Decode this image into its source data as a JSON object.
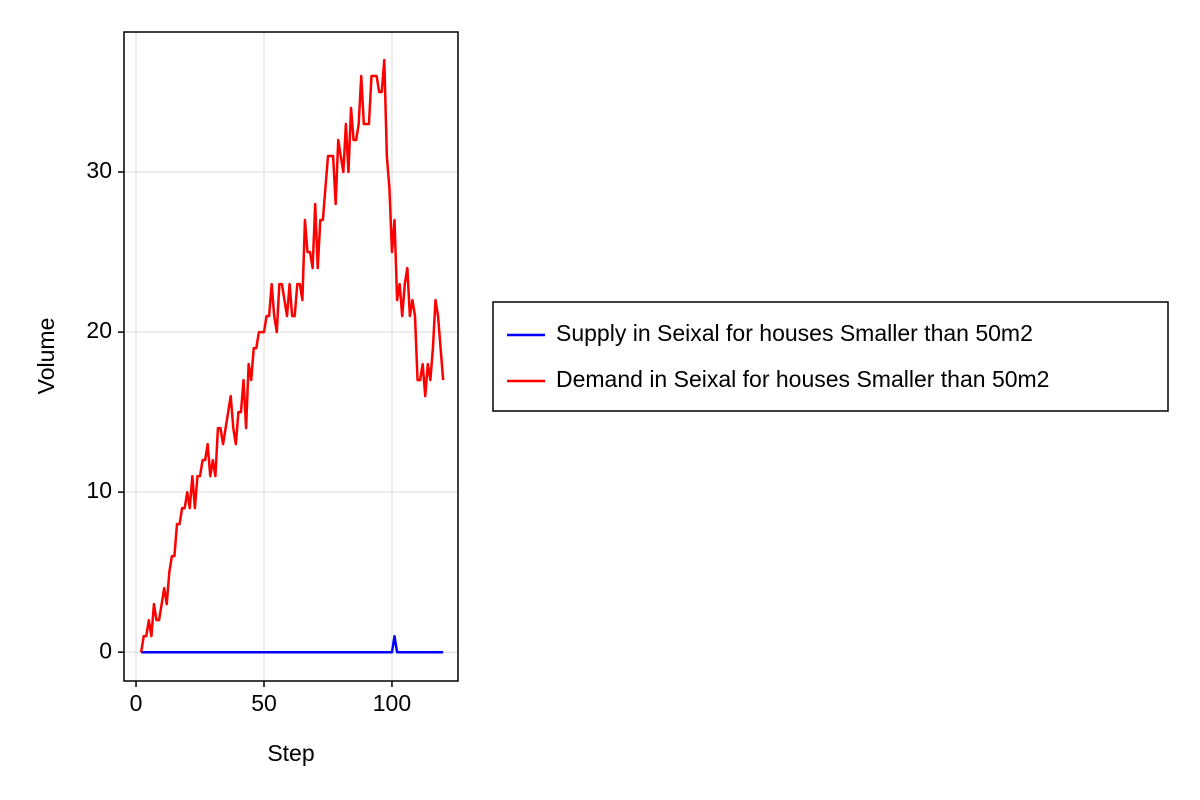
{
  "chart_data": {
    "type": "line",
    "xlabel": "Step",
    "ylabel": "Volume",
    "x": [
      2,
      3,
      4,
      5,
      6,
      7,
      8,
      9,
      10,
      11,
      12,
      13,
      14,
      15,
      16,
      17,
      18,
      19,
      20,
      21,
      22,
      23,
      24,
      25,
      26,
      27,
      28,
      29,
      30,
      31,
      32,
      33,
      34,
      35,
      36,
      37,
      38,
      39,
      40,
      41,
      42,
      43,
      44,
      45,
      46,
      47,
      48,
      49,
      50,
      51,
      52,
      53,
      54,
      55,
      56,
      57,
      58,
      59,
      60,
      61,
      62,
      63,
      64,
      65,
      66,
      67,
      68,
      69,
      70,
      71,
      72,
      73,
      74,
      75,
      76,
      77,
      78,
      79,
      80,
      81,
      82,
      83,
      84,
      85,
      86,
      87,
      88,
      89,
      90,
      91,
      92,
      93,
      94,
      95,
      96,
      97,
      98,
      99,
      100,
      101,
      102,
      103,
      104,
      105,
      106,
      107,
      108,
      109,
      110,
      111,
      112,
      113,
      114,
      115,
      116,
      117,
      118,
      119,
      120
    ],
    "series": [
      {
        "name": "Supply in Seixal for houses Smaller than 50m2",
        "color": "#0000ff",
        "values": [
          0,
          0,
          0,
          0,
          0,
          0,
          0,
          0,
          0,
          0,
          0,
          0,
          0,
          0,
          0,
          0,
          0,
          0,
          0,
          0,
          0,
          0,
          0,
          0,
          0,
          0,
          0,
          0,
          0,
          0,
          0,
          0,
          0,
          0,
          0,
          0,
          0,
          0,
          0,
          0,
          0,
          0,
          0,
          0,
          0,
          0,
          0,
          0,
          0,
          0,
          0,
          0,
          0,
          0,
          0,
          0,
          0,
          0,
          0,
          0,
          0,
          0,
          0,
          0,
          0,
          0,
          0,
          0,
          0,
          0,
          0,
          0,
          0,
          0,
          0,
          0,
          0,
          0,
          0,
          0,
          0,
          0,
          0,
          0,
          0,
          0,
          0,
          0,
          0,
          0,
          0,
          0,
          0,
          0,
          0,
          0,
          0,
          0,
          0,
          1,
          0,
          0,
          0,
          0,
          0,
          0,
          0,
          0,
          0,
          0,
          0,
          0,
          0,
          0,
          0,
          0,
          0,
          0,
          0
        ]
      },
      {
        "name": "Demand in Seixal for houses Smaller than 50m2",
        "color": "#ff0000",
        "values": [
          0,
          1,
          1,
          2,
          1,
          3,
          2,
          2,
          3,
          4,
          3,
          5,
          6,
          6,
          8,
          8,
          9,
          9,
          10,
          9,
          11,
          9,
          11,
          11,
          12,
          12,
          13,
          11,
          12,
          11,
          14,
          14,
          13,
          14,
          15,
          16,
          14,
          13,
          15,
          15,
          17,
          14,
          18,
          17,
          19,
          19,
          20,
          20,
          20,
          21,
          21,
          23,
          21,
          20,
          23,
          23,
          22,
          21,
          23,
          21,
          21,
          23,
          23,
          22,
          27,
          25,
          25,
          24,
          28,
          24,
          27,
          27,
          29,
          31,
          31,
          31,
          28,
          32,
          31,
          30,
          33,
          30,
          34,
          32,
          32,
          33,
          36,
          33,
          33,
          33,
          36,
          36,
          36,
          35,
          35,
          37,
          31,
          29,
          25,
          27,
          22,
          23,
          21,
          23,
          24,
          21,
          22,
          21,
          17,
          17,
          18,
          16,
          18,
          17,
          19,
          22,
          21,
          19,
          17
        ]
      }
    ],
    "xlim": [
      -4.7,
      125.8
    ],
    "xticks": [
      0,
      50,
      100
    ],
    "ylim": [
      -1.8,
      38.75
    ],
    "yticks": [
      0,
      10,
      20,
      30
    ],
    "grid": true,
    "legend": "right"
  }
}
